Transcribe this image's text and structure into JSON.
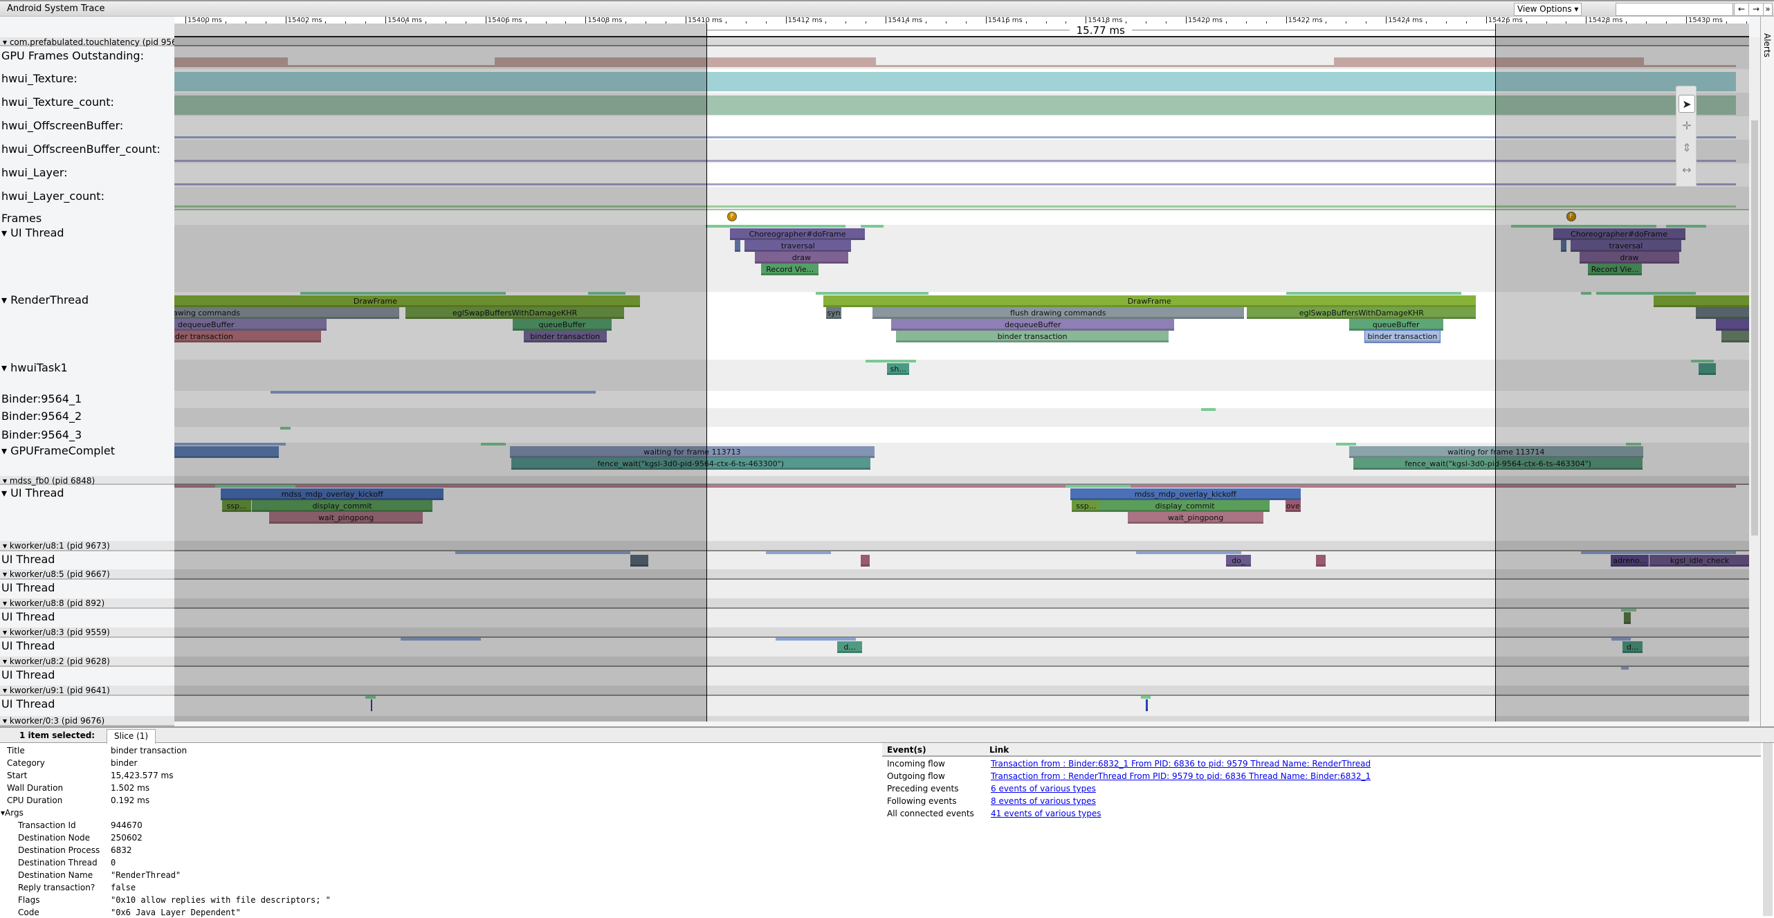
{
  "app": {
    "title": "Android System Trace",
    "view_options": "View Options ▾",
    "search_value": "",
    "nav": [
      "←",
      "→",
      "»",
      "?"
    ],
    "alerts_label": "Alerts"
  },
  "ruler": {
    "ticks": [
      15400,
      15402,
      15404,
      15406,
      15408,
      15410,
      15412,
      15414,
      15416,
      15418,
      15420,
      15422,
      15424,
      15426,
      15428,
      15430
    ],
    "unit": "ms",
    "selection": {
      "start": 15410.41,
      "end": 15426.18,
      "label": "15.77 ms"
    }
  },
  "colors": {
    "dim_overlay": "#000000",
    "selection_line": "#000000"
  },
  "tracks": [
    {
      "type": "process",
      "label": "▾ com.prefabulated.touchlatency (pid 9564)"
    },
    {
      "type": "counter",
      "label": "GPU Frames Outstanding:",
      "color": "#c4a6a2",
      "segments": [
        [
          15399.7,
          15402.05,
          1
        ],
        [
          15402.05,
          15406.18,
          0
        ],
        [
          15406.18,
          15413.8,
          1
        ],
        [
          15413.8,
          15422.96,
          0
        ],
        [
          15422.96,
          15429.16,
          1
        ],
        [
          15429.16,
          15431,
          0
        ]
      ]
    },
    {
      "type": "counter",
      "label": "hwui_Texture:",
      "color": "#a0d2d6",
      "segments": [
        [
          15399.7,
          15431,
          1
        ]
      ]
    },
    {
      "type": "counter",
      "label": "hwui_Texture_count:",
      "color": "#a0c4ae",
      "segments": [
        [
          15399.7,
          15431,
          1
        ]
      ]
    },
    {
      "type": "counter",
      "label": "hwui_OffscreenBuffer:",
      "color": "#9aaad0",
      "segments": [
        [
          15399.7,
          15431,
          0
        ]
      ]
    },
    {
      "type": "counter",
      "label": "hwui_OffscreenBuffer_count:",
      "color": "#a8a0c8",
      "segments": [
        [
          15399.7,
          15431,
          0
        ]
      ]
    },
    {
      "type": "counter",
      "label": "hwui_Layer:",
      "color": "#a8a0c8",
      "segments": [
        [
          15399.7,
          15431,
          0
        ]
      ]
    },
    {
      "type": "counter",
      "label": "hwui_Layer_count:",
      "color": "#9ccc9c",
      "segments": [
        [
          15399.7,
          15431,
          0
        ]
      ]
    },
    {
      "type": "frames",
      "label": "Frames",
      "markers": [
        {
          "t": 15410.93,
          "label": "F",
          "color": "#c88a00"
        },
        {
          "t": 15427.7,
          "label": "F",
          "color": "#c88a00"
        }
      ]
    },
    {
      "type": "thread",
      "label": "▾  UI Thread",
      "states": [
        [
          15410.4,
          15413.2,
          "#7cc894"
        ],
        [
          15413.5,
          15413.95,
          "#7cc894"
        ],
        [
          15426.5,
          15429.4,
          "#7cc894"
        ],
        [
          15429.6,
          15430.4,
          "#7cc894"
        ]
      ],
      "slices": [
        {
          "name": "Choreographer#doFrame",
          "start": 15410.89,
          "dur": 2.69,
          "depth": 0,
          "color": "#6a5c96"
        },
        {
          "name": "",
          "start": 15410.98,
          "dur": 0.11,
          "depth": 1,
          "color": "#5a6e9e"
        },
        {
          "name": "traversal",
          "start": 15411.18,
          "dur": 2.13,
          "depth": 1,
          "color": "#6c5e98"
        },
        {
          "name": "draw",
          "start": 15411.38,
          "dur": 1.87,
          "depth": 2,
          "color": "#7e6294"
        },
        {
          "name": "Record Vie...",
          "start": 15411.51,
          "dur": 1.15,
          "depth": 3,
          "color": "#52a066"
        },
        {
          "name": "Choreographer#doFrame",
          "start": 15427.34,
          "dur": 2.64,
          "depth": 0,
          "color": "#6a5c96"
        },
        {
          "name": "",
          "start": 15427.5,
          "dur": 0.11,
          "depth": 1,
          "color": "#5a6e9e"
        },
        {
          "name": "traversal",
          "start": 15427.69,
          "dur": 2.21,
          "depth": 1,
          "color": "#6c5e98"
        },
        {
          "name": "draw",
          "start": 15427.87,
          "dur": 1.99,
          "depth": 2,
          "color": "#7e6294"
        },
        {
          "name": "Record Vie...",
          "start": 15428.04,
          "dur": 1.08,
          "depth": 3,
          "color": "#52a066"
        }
      ]
    },
    {
      "type": "thread",
      "label": "▾  RenderThread",
      "states": [
        [
          15402.3,
          15406.4,
          "#7cc894"
        ],
        [
          15408.05,
          15408.8,
          "#7cc894"
        ],
        [
          15412.6,
          15414.85,
          "#7cc894"
        ],
        [
          15422.0,
          15425.5,
          "#7cc894"
        ],
        [
          15427.9,
          15428.1,
          "#7cc894"
        ],
        [
          15428.2,
          15430.2,
          "#7cc894"
        ]
      ],
      "slices": [
        {
          "name": "DrawFrame",
          "start": 15398.5,
          "dur": 10.59,
          "depth": 0,
          "color": "#86b23a"
        },
        {
          "name": "flush drawing commands",
          "start": 15396.0,
          "dur": 8.27,
          "depth": 1,
          "color": "#8a969e"
        },
        {
          "name": "eglSwapBuffersWithDamageKHR",
          "start": 15404.4,
          "dur": 4.37,
          "depth": 1,
          "color": "#74a24a"
        },
        {
          "name": "dequeueBuffer",
          "start": 15398.0,
          "dur": 4.82,
          "depth": 2,
          "color": "#8e80b4"
        },
        {
          "name": "binder transaction",
          "start": 15397.8,
          "dur": 4.91,
          "depth": 3,
          "color": "#b8727c"
        },
        {
          "name": "queueBuffer",
          "start": 15406.54,
          "dur": 1.98,
          "depth": 2,
          "color": "#58a470"
        },
        {
          "name": "binder transaction",
          "start": 15406.76,
          "dur": 1.66,
          "depth": 3,
          "color": "#7a6a9e"
        },
        {
          "name": "DrawFrame",
          "start": 15412.75,
          "dur": 13.04,
          "depth": 0,
          "color": "#86b23a"
        },
        {
          "name": "syn",
          "start": 15412.81,
          "dur": 0.3,
          "depth": 1,
          "color": "#6c7a82"
        },
        {
          "name": "flush drawing commands",
          "start": 15413.73,
          "dur": 7.43,
          "depth": 1,
          "color": "#8a969e"
        },
        {
          "name": "eglSwapBuffersWithDamageKHR",
          "start": 15421.22,
          "dur": 4.58,
          "depth": 1,
          "color": "#74a24a"
        },
        {
          "name": "dequeueBuffer",
          "start": 15414.11,
          "dur": 5.66,
          "depth": 2,
          "color": "#8e80b4"
        },
        {
          "name": "binder transaction",
          "start": 15414.2,
          "dur": 5.46,
          "depth": 3,
          "color": "#88b896"
        },
        {
          "name": "queueBuffer",
          "start": 15423.26,
          "dur": 1.88,
          "depth": 2,
          "color": "#5ea676"
        },
        {
          "name": "binder transaction",
          "start": 15423.577,
          "dur": 1.502,
          "depth": 3,
          "color": "#aabde2"
        },
        {
          "name": "",
          "start": 15429.35,
          "dur": 3,
          "depth": 0,
          "color": "#86b23a"
        },
        {
          "name": "",
          "start": 15430.2,
          "dur": 2,
          "depth": 1,
          "color": "#6c7a82"
        },
        {
          "name": "",
          "start": 15430.6,
          "dur": 2,
          "depth": 2,
          "color": "#6a5a9e"
        },
        {
          "name": "",
          "start": 15430.7,
          "dur": 2,
          "depth": 3,
          "color": "#6e8a6e"
        }
      ]
    },
    {
      "type": "thread",
      "label": "▾  hwuiTask1",
      "states": [
        [
          15413.6,
          15414.6,
          "#7cc894"
        ],
        [
          15430.1,
          15430.55,
          "#7cc894"
        ]
      ],
      "slices": [
        {
          "name": "sh...",
          "start": 15414.03,
          "dur": 0.44,
          "depth": 0,
          "color": "#4a9a86"
        },
        {
          "name": "",
          "start": 15430.25,
          "dur": 0.35,
          "depth": 0,
          "color": "#4a9a86"
        }
      ]
    },
    {
      "type": "thread",
      "label": "Binder:9564_1",
      "states": [
        [
          15401.7,
          15408.2,
          "#8aa2d0"
        ]
      ],
      "slices": []
    },
    {
      "type": "thread",
      "label": "Binder:9564_2",
      "states": [
        [
          15420.3,
          15420.6,
          "#7cc894"
        ]
      ],
      "slices": []
    },
    {
      "type": "thread",
      "label": "Binder:9564_3",
      "states": [
        [
          15401.9,
          15402.1,
          "#7cc894"
        ]
      ],
      "slices": []
    },
    {
      "type": "thread",
      "label": "▾  GPUFrameComplet",
      "states": [
        [
          15399.7,
          15402.0,
          "#8aa2d0"
        ],
        [
          15405.9,
          15406.4,
          "#7cc894"
        ],
        [
          15423.0,
          15423.4,
          "#7cc894"
        ],
        [
          15428.8,
          15429.1,
          "#7cc894"
        ]
      ],
      "slices": [
        {
          "name": "",
          "start": 15398.0,
          "dur": 3.87,
          "depth": 0,
          "color": "#6080b8"
        },
        {
          "name": "waiting for frame 113713",
          "start": 15406.49,
          "dur": 7.28,
          "depth": 0,
          "color": "#8494b4"
        },
        {
          "name": "fence_wait(\"kgsl-3d0-pid-9564-ctx-6-ts-463300\")",
          "start": 15406.51,
          "dur": 7.18,
          "depth": 1,
          "color": "#56988e"
        },
        {
          "name": "waiting for frame 113714",
          "start": 15423.26,
          "dur": 5.88,
          "depth": 0,
          "color": "#8aa4aa"
        },
        {
          "name": "fence_wait(\"kgsl-3d0-pid-9564-ctx-6-ts-463304\")",
          "start": 15423.35,
          "dur": 5.78,
          "depth": 1,
          "color": "#5c9c7e"
        }
      ]
    },
    {
      "type": "process",
      "label": "▾ mdss_fb0 (pid 6848)"
    },
    {
      "type": "thread",
      "label": "▾  UI Thread",
      "states": [
        [
          15399.7,
          15431,
          "#b87888"
        ],
        [
          15400.6,
          15402.2,
          "#7cc894"
        ],
        [
          15417.6,
          15418.9,
          "#7cc894"
        ]
      ],
      "slices": [
        {
          "name": "mdss_mdp_overlay_kickoff",
          "start": 15400.71,
          "dur": 4.45,
          "depth": 0,
          "color": "#4a70b8"
        },
        {
          "name": "ssp...",
          "start": 15400.73,
          "dur": 0.59,
          "depth": 1,
          "color": "#6a9a3c"
        },
        {
          "name": "display_commit",
          "start": 15401.33,
          "dur": 3.61,
          "depth": 1,
          "color": "#5a9e5a"
        },
        {
          "name": "wait_pingpong",
          "start": 15401.67,
          "dur": 3.08,
          "depth": 2,
          "color": "#aa7484"
        },
        {
          "name": "mdss_mdp_overlay_kickoff",
          "start": 15417.69,
          "dur": 4.6,
          "depth": 0,
          "color": "#4a70b8"
        },
        {
          "name": "ssp...",
          "start": 15417.72,
          "dur": 0.57,
          "depth": 1,
          "color": "#6a9a3c"
        },
        {
          "name": "display_commit",
          "start": 15418.28,
          "dur": 3.4,
          "depth": 1,
          "color": "#5a9e5a"
        },
        {
          "name": "ove",
          "start": 15421.99,
          "dur": 0.3,
          "depth": 1,
          "color": "#9a5a70"
        },
        {
          "name": "wait_pingpong",
          "start": 15418.84,
          "dur": 2.71,
          "depth": 2,
          "color": "#aa7484"
        }
      ]
    },
    {
      "type": "process",
      "label": "▾ kworker/u8:1 (pid 9673)"
    },
    {
      "type": "thread",
      "label": "UI Thread",
      "states": [
        [
          15405.4,
          15408.9,
          "#8aa2d0"
        ],
        [
          15411.6,
          15412.9,
          "#8aa2d0"
        ],
        [
          15419.0,
          15421.1,
          "#8aa2d0"
        ],
        [
          15427.9,
          15431,
          "#8aa2d0"
        ]
      ],
      "slices": [
        {
          "name": "",
          "start": 15408.9,
          "dur": 0.35,
          "depth": 0,
          "color": "#5a6a78"
        },
        {
          "name": "",
          "start": 15413.5,
          "dur": 0.18,
          "depth": 0,
          "color": "#9a5a70"
        },
        {
          "name": "do_",
          "start": 15420.8,
          "dur": 0.5,
          "depth": 0,
          "color": "#6a5a8e"
        },
        {
          "name": "",
          "start": 15422.6,
          "dur": 0.2,
          "depth": 0,
          "color": "#9a5a70"
        },
        {
          "name": "adreno...",
          "start": 15428.49,
          "dur": 0.77,
          "depth": 0,
          "color": "#5a4a8a"
        },
        {
          "name": "kgsl_idle_check",
          "start": 15429.27,
          "dur": 2.0,
          "depth": 0,
          "color": "#6e5a8e"
        }
      ]
    },
    {
      "type": "process",
      "label": "▾ kworker/u8:5 (pid 9667)"
    },
    {
      "type": "thread",
      "label": "UI Thread",
      "states": [],
      "slices": []
    },
    {
      "type": "process",
      "label": "▾ kworker/u8:8 (pid 892)"
    },
    {
      "type": "thread",
      "label": "UI Thread",
      "states": [
        [
          15428.7,
          15429.0,
          "#7cc894"
        ]
      ],
      "slices": [
        {
          "name": "",
          "start": 15428.75,
          "dur": 0.15,
          "depth": 0,
          "color": "#5a7a48"
        }
      ]
    },
    {
      "type": "process",
      "label": "▾ kworker/u8:3 (pid 9559)"
    },
    {
      "type": "thread",
      "label": "UI Thread",
      "states": [
        [
          15404.3,
          15405.9,
          "#8aa2d0"
        ],
        [
          15411.8,
          15413.4,
          "#8aa2d0"
        ],
        [
          15428.5,
          15428.9,
          "#8aa2d0"
        ]
      ],
      "slices": [
        {
          "name": "d...",
          "start": 15413.03,
          "dur": 0.5,
          "depth": 0,
          "color": "#4f9a80"
        },
        {
          "name": "d...",
          "start": 15428.73,
          "dur": 0.4,
          "depth": 0,
          "color": "#4f9a80"
        }
      ]
    },
    {
      "type": "process",
      "label": "▾ kworker/u8:2 (pid 9628)"
    },
    {
      "type": "thread",
      "label": "UI Thread",
      "states": [
        [
          15428.7,
          15428.85,
          "#8aa2d0"
        ]
      ],
      "slices": []
    },
    {
      "type": "process",
      "label": "▾ kworker/u9:1 (pid 9641)"
    },
    {
      "type": "thread",
      "label": "UI Thread",
      "states": [
        [
          15403.6,
          15403.8,
          "#7cc894"
        ],
        [
          15419.1,
          15419.3,
          "#7cc894"
        ]
      ],
      "slices": [
        {
          "name": "",
          "start": 15403.7,
          "dur": 0.04,
          "depth": 0,
          "color": "#2a40c0"
        },
        {
          "name": "",
          "start": 15419.2,
          "dur": 0.04,
          "depth": 0,
          "color": "#2a40c0"
        }
      ]
    },
    {
      "type": "process",
      "label": "▾ kworker/0:3 (pid 9676)"
    }
  ],
  "panel": {
    "selected_label": "1 item selected:",
    "tab": "Slice (1)",
    "fields": [
      [
        "Title",
        "binder transaction"
      ],
      [
        "Category",
        "binder"
      ],
      [
        "Start",
        "15,423.577 ms"
      ],
      [
        "Wall Duration",
        "1.502 ms"
      ],
      [
        "CPU Duration",
        "0.192 ms"
      ]
    ],
    "args_label": "▾Args",
    "args": [
      [
        "Transaction Id",
        "944670"
      ],
      [
        "Destination Node",
        "250602"
      ],
      [
        "Destination Process",
        "6832"
      ],
      [
        "Destination Thread",
        "0"
      ],
      [
        "Destination Name",
        "\"RenderThread\""
      ],
      [
        "Reply transaction?",
        "false"
      ],
      [
        "Flags",
        "\"0x10 allow replies with file descriptors; \""
      ],
      [
        "Code",
        "\"0x6 Java Layer Dependent\""
      ]
    ],
    "events_header": [
      "Event(s)",
      "Link"
    ],
    "events": [
      [
        "Incoming flow",
        "Transaction from : Binder:6832_1 From PID: 6836 to pid: 9579 Thread Name: RenderThread"
      ],
      [
        "Outgoing flow",
        "Transaction from : RenderThread From PID: 9579 to pid: 6836 Thread Name: Binder:6832_1"
      ],
      [
        "Preceding events",
        "6 events of various types"
      ],
      [
        "Following events",
        "8 events of various types"
      ],
      [
        "All connected events",
        "41 events of various types"
      ]
    ]
  },
  "toolbar": {
    "tools": [
      {
        "icon": "cursor-icon",
        "glyph": "➤"
      },
      {
        "icon": "pan-icon",
        "glyph": "✛"
      },
      {
        "icon": "zoom-icon",
        "glyph": "⇕"
      },
      {
        "icon": "timing-icon",
        "glyph": "↔"
      }
    ]
  }
}
